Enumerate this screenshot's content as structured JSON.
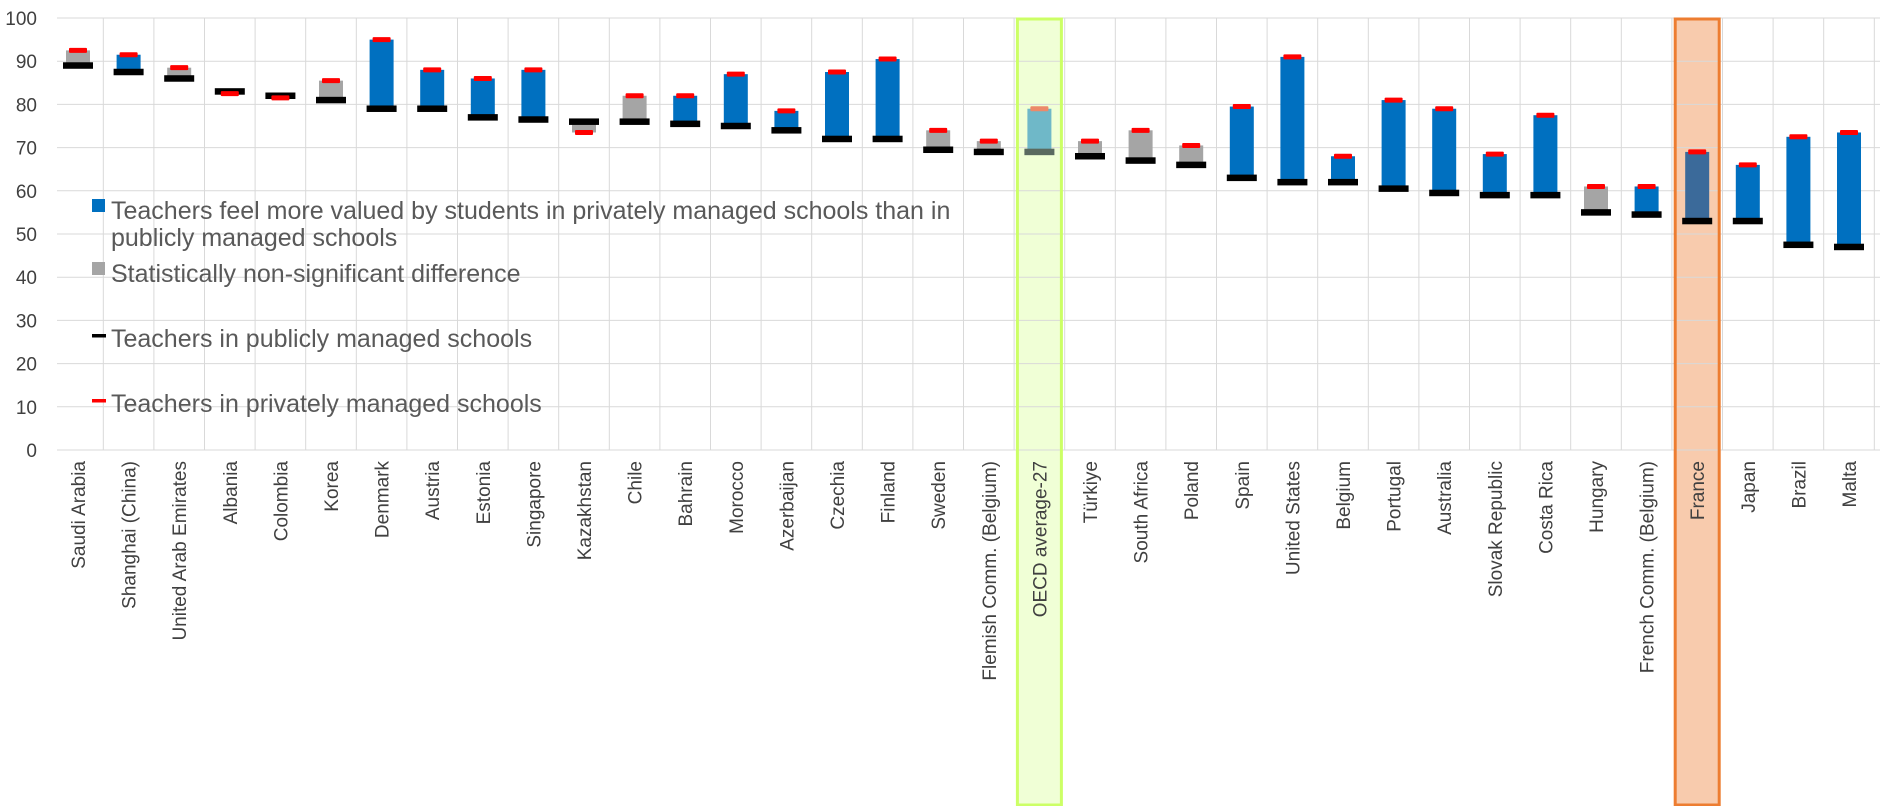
{
  "chart_data": {
    "type": "bar",
    "title": "",
    "xlabel": "",
    "ylabel": "",
    "ylim": [
      0,
      100
    ],
    "yticks": [
      0,
      10,
      20,
      30,
      40,
      50,
      60,
      70,
      80,
      90,
      100
    ],
    "grid": true,
    "legend_position": "left-center",
    "categories": [
      "Saudi Arabia",
      "Shanghai (China)",
      "United Arab Emirates",
      "Albania",
      "Colombia",
      "Korea",
      "Denmark",
      "Austria",
      "Estonia",
      "Singapore",
      "Kazakhstan",
      "Chile",
      "Bahrain",
      "Morocco",
      "Azerbaijan",
      "Czechia",
      "Finland",
      "Sweden",
      "Flemish Comm. (Belgium)",
      "OECD average-27",
      "Türkiye",
      "South Africa",
      "Poland",
      "Spain",
      "United States",
      "Belgium",
      "Portugal",
      "Australia",
      "Slovak Republic",
      "Costa Rica",
      "Hungary",
      "French Comm. (Belgium)",
      "France",
      "Japan",
      "Brazil",
      "Malta"
    ],
    "series": [
      {
        "name": "Teachers in publicly managed schools",
        "values": [
          89,
          87.5,
          86,
          83,
          82,
          81,
          79,
          79,
          77,
          76.5,
          76,
          76,
          75.5,
          75,
          74,
          72,
          72,
          69.5,
          69,
          69,
          68,
          67,
          66,
          63,
          62,
          62,
          60.5,
          59.5,
          59,
          59,
          55,
          54.5,
          53,
          53,
          47.5,
          47
        ]
      },
      {
        "name": "Teachers in privately managed schools",
        "values": [
          92.5,
          91.5,
          88.5,
          82.5,
          81.5,
          85.5,
          95,
          88,
          86,
          88,
          73.5,
          82,
          82,
          87,
          78.5,
          87.5,
          90.5,
          74,
          71.5,
          79,
          71.5,
          74,
          70.5,
          79.5,
          91,
          68,
          81,
          79,
          68.5,
          77.5,
          61,
          61,
          69,
          66,
          72.5,
          73.5
        ]
      },
      {
        "name": "Teachers feel more valued by students in privately managed schools than in publicly managed schools",
        "significant": [
          false,
          true,
          false,
          false,
          false,
          false,
          true,
          true,
          true,
          true,
          false,
          false,
          true,
          true,
          true,
          true,
          true,
          false,
          false,
          true,
          false,
          false,
          false,
          true,
          true,
          true,
          true,
          true,
          true,
          true,
          false,
          true,
          true,
          true,
          true,
          true
        ]
      },
      {
        "name": "Statistically non-significant difference"
      }
    ],
    "highlighted": [
      "OECD average-27",
      "France"
    ],
    "colors": {
      "significant": "#0070c0",
      "non_significant": "#a5a5a5",
      "public_marker": "#000000",
      "private_marker": "#ff0000",
      "oecd_box_border": "#ccff66",
      "oecd_box_fill": "#f0ffd6",
      "oecd_bar": "#6fb8c8",
      "oecd_label": "#8cac5c",
      "france_box_border": "#ed7d31",
      "france_box_fill": "#f8cbad",
      "france_bar": "#3b6a9a",
      "france_label": "#c55a11",
      "grid": "#d9d9d9",
      "axis_text": "#404040",
      "legend_text": "#595959"
    }
  },
  "legend": {
    "items": [
      {
        "label_lines": [
          "Teachers feel more valued by students in privately managed schools than in",
          "publicly managed schools"
        ],
        "symbol": "square",
        "color": "#0070c0"
      },
      {
        "label_lines": [
          "Statistically non-significant difference"
        ],
        "symbol": "square",
        "color": "#a5a5a5"
      },
      {
        "label_lines": [
          "Teachers in publicly managed schools"
        ],
        "symbol": "dash",
        "color": "#000000"
      },
      {
        "label_lines": [
          "Teachers in privately managed schools"
        ],
        "symbol": "dash",
        "color": "#ff0000"
      }
    ]
  }
}
